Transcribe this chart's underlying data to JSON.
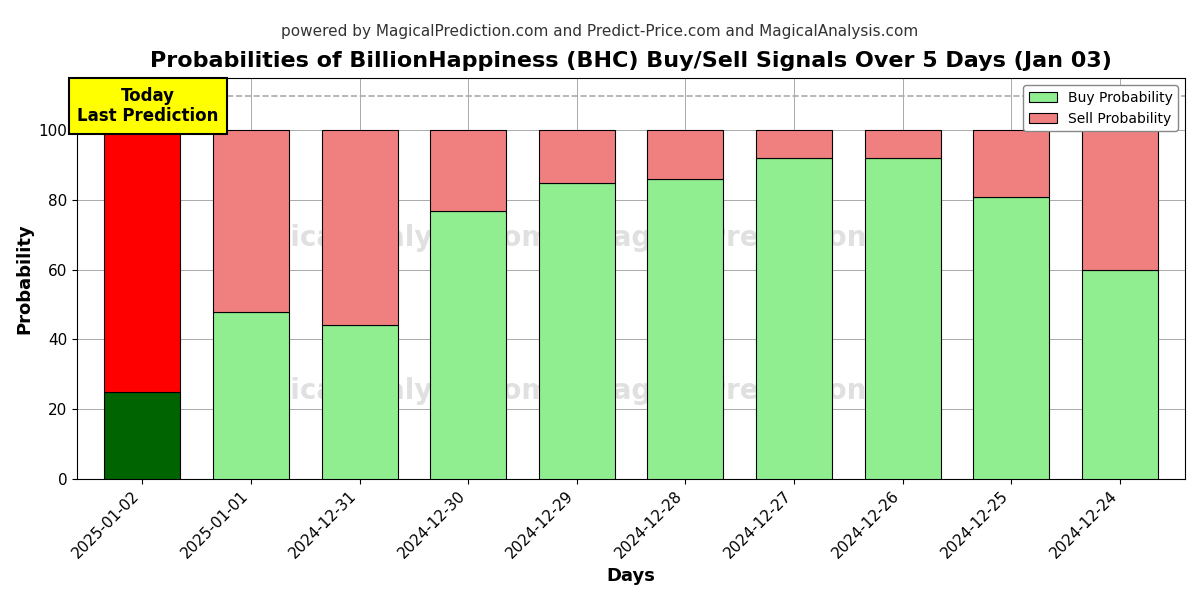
{
  "title": "Probabilities of BillionHappiness (BHC) Buy/Sell Signals Over 5 Days (Jan 03)",
  "subtitle": "powered by MagicalPrediction.com and Predict-Price.com and MagicalAnalysis.com",
  "xlabel": "Days",
  "ylabel": "Probability",
  "dates": [
    "2025-01-02",
    "2025-01-01",
    "2024-12-31",
    "2024-12-30",
    "2024-12-29",
    "2024-12-28",
    "2024-12-27",
    "2024-12-26",
    "2024-12-25",
    "2024-12-24"
  ],
  "buy_values": [
    25,
    48,
    44,
    77,
    85,
    86,
    92,
    92,
    81,
    60
  ],
  "sell_values": [
    75,
    52,
    56,
    23,
    15,
    14,
    8,
    8,
    19,
    40
  ],
  "first_bar_buy_color": "#006400",
  "first_bar_sell_color": "#ff0000",
  "other_buy_color": "#90ee90",
  "other_sell_color": "#f08080",
  "bar_edge_color": "#000000",
  "ylim": [
    0,
    115
  ],
  "yticks": [
    0,
    20,
    40,
    60,
    80,
    100
  ],
  "dashed_line_y": 110,
  "today_box_color": "#ffff00",
  "today_text": "Today\nLast Prediction",
  "legend_buy_label": "Buy Probability",
  "legend_sell_label": "Sell Probability",
  "background_color": "#ffffff",
  "grid_color": "#aaaaaa",
  "title_fontsize": 16,
  "subtitle_fontsize": 11,
  "axis_label_fontsize": 13,
  "tick_fontsize": 11
}
